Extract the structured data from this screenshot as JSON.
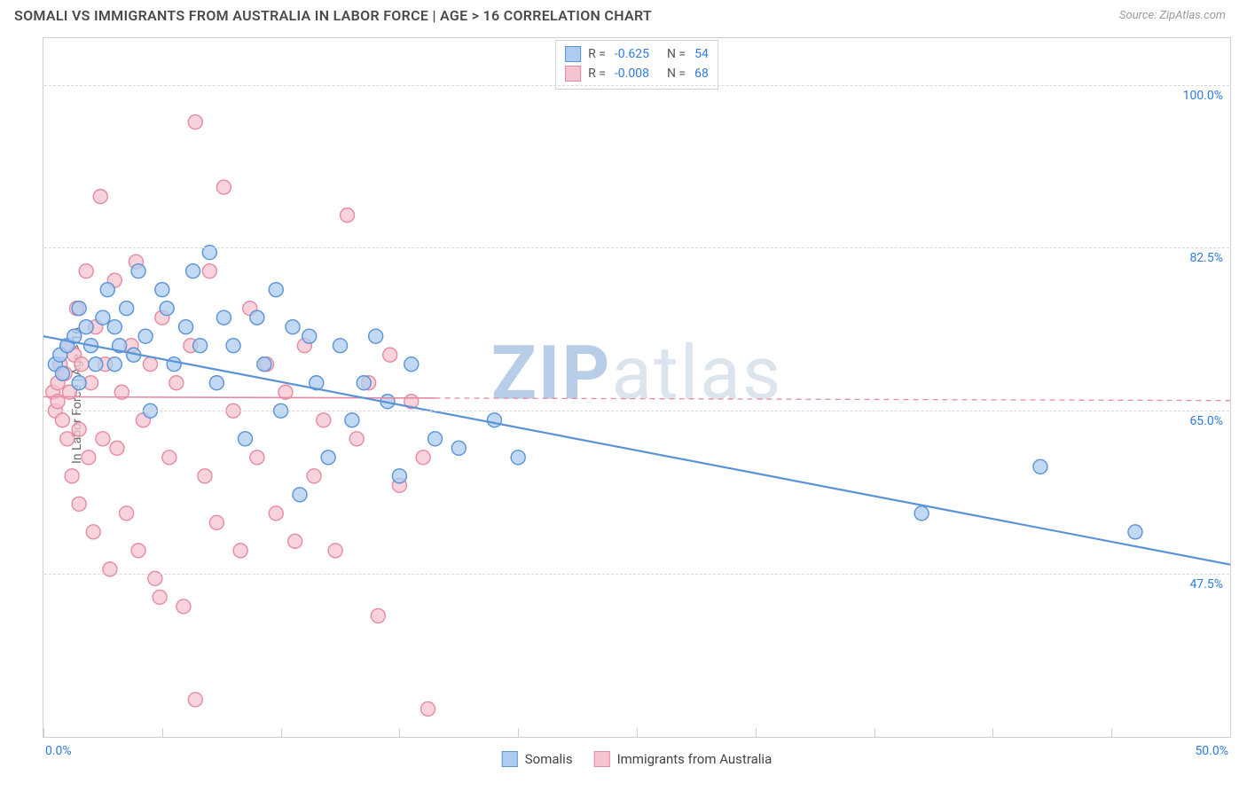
{
  "title": "SOMALI VS IMMIGRANTS FROM AUSTRALIA IN LABOR FORCE | AGE > 16 CORRELATION CHART",
  "source": "Source: ZipAtlas.com",
  "watermark": {
    "bold": "ZIP",
    "light": "atlas",
    "bold_color": "#b7cde8",
    "light_color": "#dce4ee"
  },
  "chart": {
    "type": "scatter",
    "background_color": "#ffffff",
    "border_color": "#cfcfcf",
    "grid_color": "#d8d8d8",
    "ylabel": "In Labor Force | Age > 16",
    "xlim": [
      0,
      50
    ],
    "ylim": [
      30,
      105
    ],
    "x_ticks": [
      0,
      5,
      10,
      15,
      20,
      25,
      30,
      35,
      40,
      45,
      50
    ],
    "x_axis_labels": {
      "min": "0.0%",
      "max": "50.0%",
      "color": "#2f7be0"
    },
    "y_gridlines": [
      {
        "y": 100.0,
        "label": "100.0%"
      },
      {
        "y": 82.5,
        "label": "82.5%"
      },
      {
        "y": 65.0,
        "label": "65.0%"
      },
      {
        "y": 47.5,
        "label": "47.5%"
      }
    ],
    "y_label_color": "#2f7be0",
    "marker_radius": 8,
    "marker_stroke_width": 1.4,
    "series": {
      "somalis": {
        "label": "Somalis",
        "fill": "#aeccf0",
        "stroke": "#5a93d6",
        "fill_opacity": 0.75,
        "R": "-0.625",
        "N": "54",
        "trend": {
          "x1": 0,
          "y1": 73.0,
          "x2": 50,
          "y2": 48.5,
          "solid_until_x": 50,
          "width": 2.2
        },
        "points": [
          [
            0.5,
            70
          ],
          [
            0.7,
            71
          ],
          [
            0.8,
            69
          ],
          [
            1.0,
            72
          ],
          [
            1.3,
            73
          ],
          [
            1.5,
            76
          ],
          [
            1.5,
            68
          ],
          [
            1.8,
            74
          ],
          [
            2.0,
            72
          ],
          [
            2.2,
            70
          ],
          [
            2.5,
            75
          ],
          [
            2.7,
            78
          ],
          [
            3.0,
            74
          ],
          [
            3.0,
            70
          ],
          [
            3.2,
            72
          ],
          [
            3.5,
            76
          ],
          [
            3.8,
            71
          ],
          [
            4.0,
            80
          ],
          [
            4.3,
            73
          ],
          [
            4.5,
            65
          ],
          [
            5.0,
            78
          ],
          [
            5.2,
            76
          ],
          [
            5.5,
            70
          ],
          [
            6.0,
            74
          ],
          [
            6.3,
            80
          ],
          [
            6.6,
            72
          ],
          [
            7.0,
            82
          ],
          [
            7.3,
            68
          ],
          [
            7.6,
            75
          ],
          [
            8.0,
            72
          ],
          [
            8.5,
            62
          ],
          [
            9.0,
            75
          ],
          [
            9.3,
            70
          ],
          [
            9.8,
            78
          ],
          [
            10.0,
            65
          ],
          [
            10.5,
            74
          ],
          [
            10.8,
            56
          ],
          [
            11.2,
            73
          ],
          [
            11.5,
            68
          ],
          [
            12.0,
            60
          ],
          [
            12.5,
            72
          ],
          [
            13.0,
            64
          ],
          [
            13.5,
            68
          ],
          [
            14.0,
            73
          ],
          [
            14.5,
            66
          ],
          [
            15.0,
            58
          ],
          [
            15.5,
            70
          ],
          [
            16.5,
            62
          ],
          [
            17.5,
            61
          ],
          [
            19.0,
            64
          ],
          [
            20.0,
            60
          ],
          [
            37.0,
            54
          ],
          [
            42.0,
            59
          ],
          [
            46.0,
            52
          ]
        ]
      },
      "australia": {
        "label": "Immigrants from Australia",
        "fill": "#f6c4d0",
        "stroke": "#e58aa2",
        "fill_opacity": 0.75,
        "R": "-0.008",
        "N": "68",
        "trend": {
          "x1": 0,
          "y1": 66.5,
          "x2": 50,
          "y2": 66.1,
          "solid_until_x": 16.5,
          "width": 1.6
        },
        "points": [
          [
            0.4,
            67
          ],
          [
            0.5,
            65
          ],
          [
            0.6,
            68
          ],
          [
            0.6,
            66
          ],
          [
            0.7,
            70
          ],
          [
            0.8,
            64
          ],
          [
            0.9,
            69
          ],
          [
            1.0,
            72
          ],
          [
            1.0,
            62
          ],
          [
            1.1,
            67
          ],
          [
            1.2,
            58
          ],
          [
            1.3,
            71
          ],
          [
            1.4,
            76
          ],
          [
            1.5,
            63
          ],
          [
            1.5,
            55
          ],
          [
            1.6,
            70
          ],
          [
            1.8,
            80
          ],
          [
            1.9,
            60
          ],
          [
            2.0,
            68
          ],
          [
            2.1,
            52
          ],
          [
            2.2,
            74
          ],
          [
            2.4,
            88
          ],
          [
            2.5,
            62
          ],
          [
            2.6,
            70
          ],
          [
            2.8,
            48
          ],
          [
            3.0,
            79
          ],
          [
            3.1,
            61
          ],
          [
            3.3,
            67
          ],
          [
            3.5,
            54
          ],
          [
            3.7,
            72
          ],
          [
            3.9,
            81
          ],
          [
            4.0,
            50
          ],
          [
            4.2,
            64
          ],
          [
            4.5,
            70
          ],
          [
            4.7,
            47
          ],
          [
            5.0,
            75
          ],
          [
            5.3,
            60
          ],
          [
            5.6,
            68
          ],
          [
            5.9,
            44
          ],
          [
            6.2,
            72
          ],
          [
            6.4,
            96
          ],
          [
            6.8,
            58
          ],
          [
            7.0,
            80
          ],
          [
            7.3,
            53
          ],
          [
            7.6,
            89
          ],
          [
            8.0,
            65
          ],
          [
            8.3,
            50
          ],
          [
            8.7,
            76
          ],
          [
            9.0,
            60
          ],
          [
            9.4,
            70
          ],
          [
            9.8,
            54
          ],
          [
            10.2,
            67
          ],
          [
            10.6,
            51
          ],
          [
            11.0,
            72
          ],
          [
            11.4,
            58
          ],
          [
            11.8,
            64
          ],
          [
            12.3,
            50
          ],
          [
            12.8,
            86
          ],
          [
            13.2,
            62
          ],
          [
            13.7,
            68
          ],
          [
            14.1,
            43
          ],
          [
            14.6,
            71
          ],
          [
            15.0,
            57
          ],
          [
            15.5,
            66
          ],
          [
            16.0,
            60
          ],
          [
            16.2,
            33
          ],
          [
            6.4,
            34
          ],
          [
            4.9,
            45
          ]
        ]
      }
    },
    "legend_top_labels": {
      "R": "R =",
      "N": "N =",
      "stat_color": "#2f7be0"
    },
    "legend_bottom": [
      {
        "key": "somalis"
      },
      {
        "key": "australia"
      }
    ]
  }
}
